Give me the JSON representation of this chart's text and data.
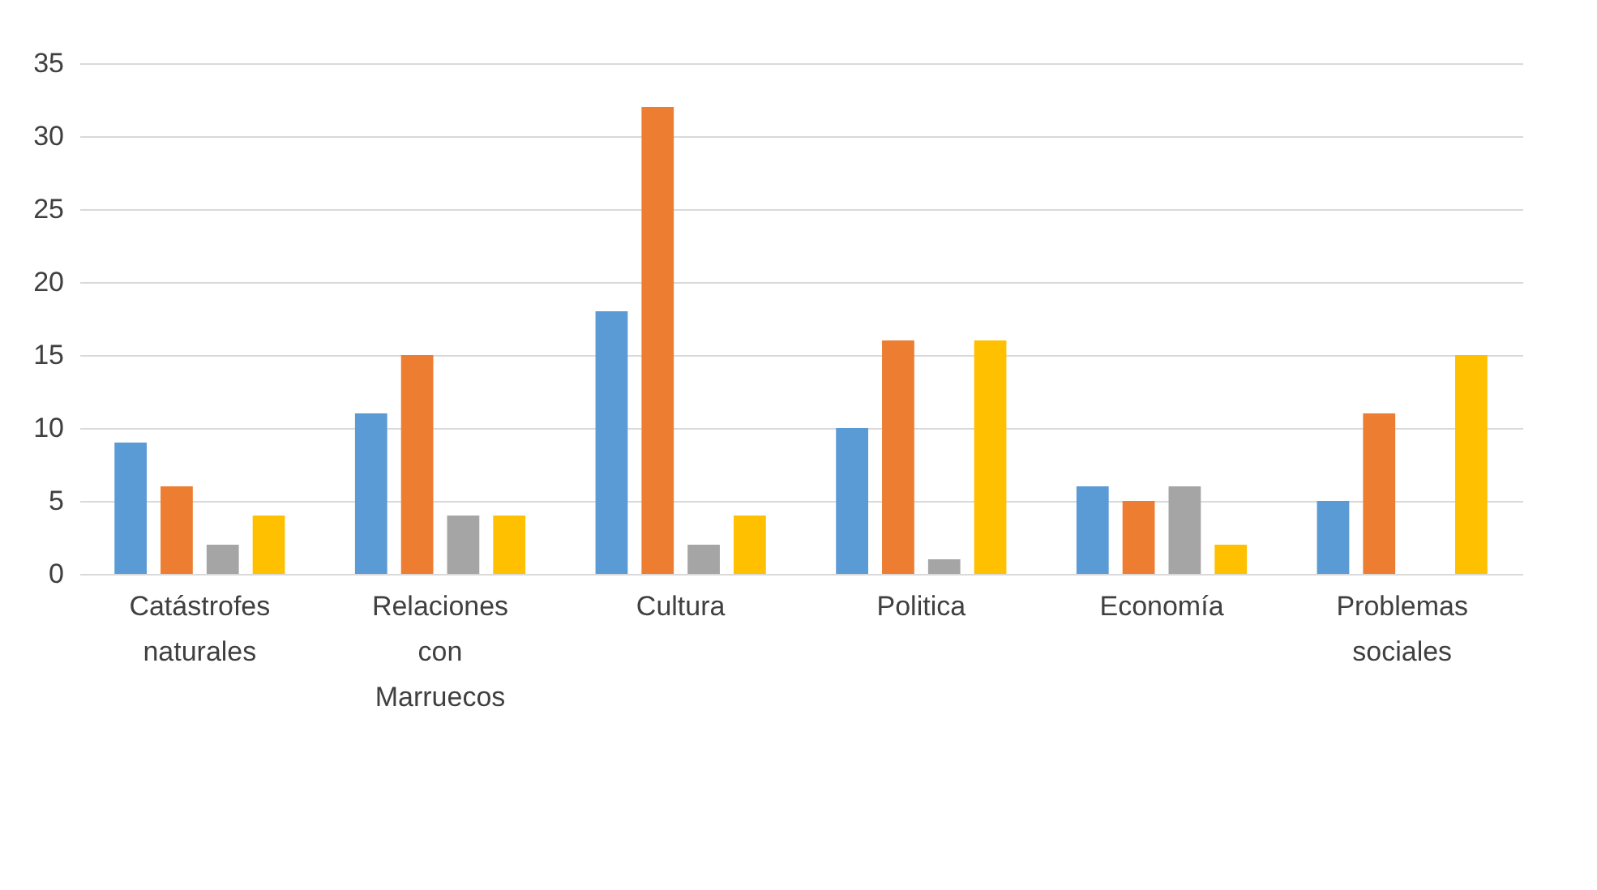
{
  "chart_data": {
    "type": "bar",
    "categories": [
      "Catástrofes naturales",
      "Relaciones con Marruecos",
      "Cultura",
      "Politica",
      "Economía",
      "Problemas sociales"
    ],
    "series": [
      {
        "color": "#5b9bd5",
        "values": [
          9,
          11,
          18,
          10,
          6,
          5
        ]
      },
      {
        "color": "#ed7d31",
        "values": [
          6,
          15,
          32,
          16,
          5,
          11
        ]
      },
      {
        "color": "#a5a5a5",
        "values": [
          2,
          4,
          2,
          1,
          6,
          null
        ]
      },
      {
        "color": "#ffc000",
        "values": [
          4,
          4,
          4,
          16,
          2,
          15
        ]
      }
    ],
    "ylim": [
      0,
      35
    ],
    "yticks": [
      0,
      5,
      10,
      15,
      20,
      25,
      30,
      35
    ],
    "grid": "y"
  }
}
